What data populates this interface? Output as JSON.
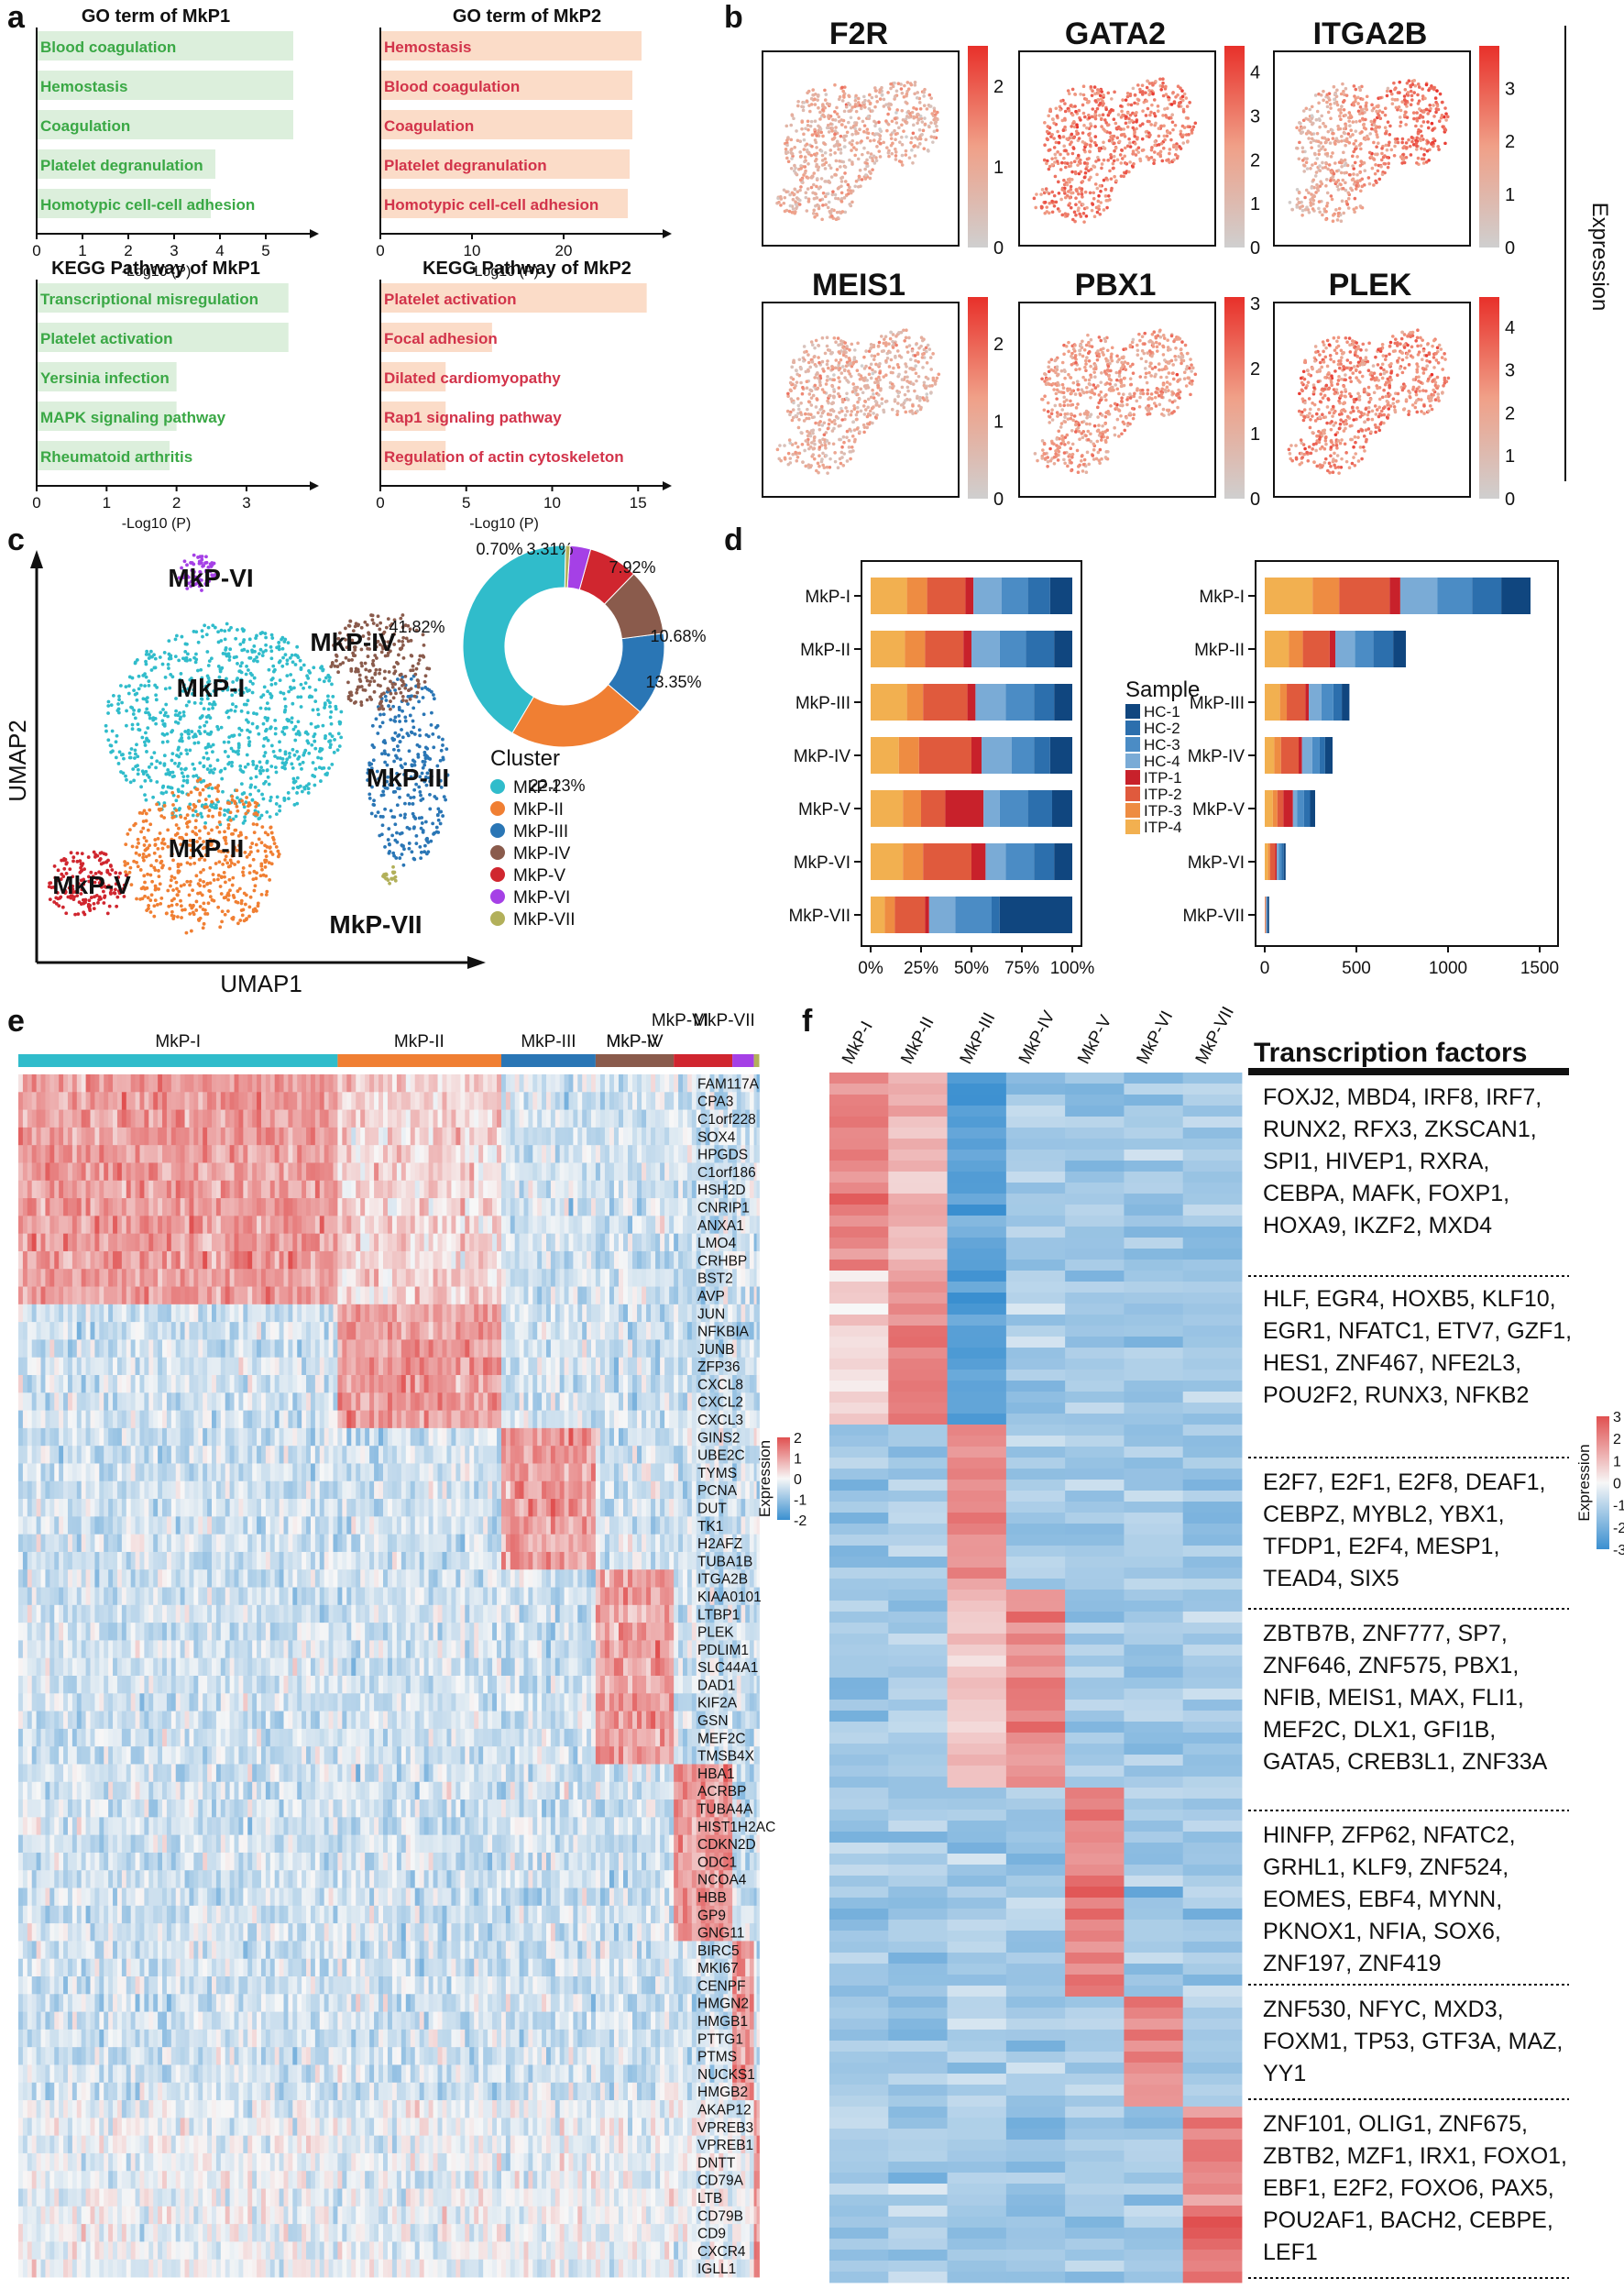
{
  "panel_labels": {
    "a": "a",
    "b": "b",
    "c": "c",
    "d": "d",
    "e": "e",
    "f": "f"
  },
  "colors": {
    "mkp1_bar": "#dcefdc",
    "mkp1_text": "#3aa845",
    "mkp2_bar": "#fbdcc8",
    "mkp2_text": "#d2334a",
    "clusters": {
      "MkP-I": "#30bccb",
      "MkP-II": "#f07f33",
      "MkP-III": "#2a76b5",
      "MkP-IV": "#8a5b4c",
      "MkP-V": "#d0262f",
      "MkP-VI": "#a540e6",
      "MkP-VII": "#b2b05a"
    },
    "samples": {
      "HC-1": "#10467f",
      "HC-2": "#2c6fad",
      "HC-3": "#4b8cc5",
      "HC-4": "#7aabd6",
      "ITP-1": "#c8212b",
      "ITP-2": "#e05a3d",
      "ITP-3": "#ee8c42",
      "ITP-4": "#f2b050"
    }
  },
  "chart_data": [
    {
      "id": "a1",
      "type": "bar",
      "orientation": "horizontal",
      "title": "GO term of MkP1",
      "categories": [
        "Blood coagulation",
        "Hemostasis",
        "Coagulation",
        "Platelet degranulation",
        "Homotypic cell-cell adhesion"
      ],
      "values": [
        5.6,
        5.6,
        5.6,
        3.9,
        3.8
      ],
      "xlabel": "-Log10 (P)",
      "xticks": [
        "0",
        "1",
        "2",
        "3",
        "4",
        "5"
      ],
      "xlim": [
        0,
        5.8
      ]
    },
    {
      "id": "a2",
      "type": "bar",
      "orientation": "horizontal",
      "title": "GO term of MkP2",
      "categories": [
        "Hemostasis",
        "Blood coagulation",
        "Coagulation",
        "Platelet degranulation",
        "Homotypic cell-cell adhesion"
      ],
      "values": [
        28.5,
        27.5,
        27.5,
        27.2,
        27.0
      ],
      "xlabel": "-Log10 (P)",
      "xticks": [
        "0",
        "10",
        "20"
      ],
      "xlim": [
        0,
        30
      ]
    },
    {
      "id": "a3",
      "type": "bar",
      "orientation": "horizontal",
      "title": "KEGG Pathway of MkP1",
      "categories": [
        "Transcriptional misregulation",
        "Platelet activation",
        "Yersinia infection",
        "MAPK signaling pathway",
        "Rheumatoid arthritis"
      ],
      "values": [
        3.6,
        3.6,
        2.0,
        2.0,
        1.9
      ],
      "xlabel": "-Log10 (P)",
      "xticks": [
        "0",
        "1",
        "2",
        "3"
      ],
      "xlim": [
        0,
        3.8
      ]
    },
    {
      "id": "a4",
      "type": "bar",
      "orientation": "horizontal",
      "title": "KEGG Pathway of MkP2",
      "categories": [
        "Platelet activation",
        "Focal adhesion",
        "Dilated cardiomyopathy",
        "Rap1 signaling pathway",
        "Regulation of actin cytoskeleton"
      ],
      "values": [
        15.5,
        6.5,
        3.8,
        3.8,
        3.8
      ],
      "xlabel": "-Log10 (P)",
      "xticks": [
        "0",
        "5",
        "10",
        "15"
      ],
      "xlim": [
        0,
        16
      ]
    },
    {
      "id": "b",
      "type": "scatter",
      "subtype": "feature-umap",
      "panels": [
        {
          "gene": "F2R",
          "cbar_ticks": [
            "0",
            "1",
            "2"
          ],
          "max": 2.5
        },
        {
          "gene": "GATA2",
          "cbar_ticks": [
            "0",
            "1",
            "2",
            "3",
            "4"
          ],
          "max": 4.6
        },
        {
          "gene": "ITGA2B",
          "cbar_ticks": [
            "0",
            "1",
            "2",
            "3"
          ],
          "max": 3.8
        },
        {
          "gene": "MEIS1",
          "cbar_ticks": [
            "0",
            "1",
            "2"
          ],
          "max": 2.6
        },
        {
          "gene": "PBX1",
          "cbar_ticks": [
            "0",
            "1",
            "2",
            "3"
          ],
          "max": 3.1
        },
        {
          "gene": "PLEK",
          "cbar_ticks": [
            "0",
            "1",
            "2",
            "3",
            "4"
          ],
          "max": 4.7
        }
      ],
      "colorbar_label": "Expression"
    },
    {
      "id": "c1",
      "type": "scatter",
      "subtype": "umap",
      "xlabel": "UMAP1",
      "ylabel": "UMAP2",
      "clusters": [
        "MkP-I",
        "MkP-II",
        "MkP-III",
        "MkP-IV",
        "MkP-V",
        "MkP-VI",
        "MkP-VII"
      ],
      "legend_title": "Cluster"
    },
    {
      "id": "c2",
      "type": "pie",
      "subtype": "donut",
      "categories": [
        "MkP-I",
        "MkP-II",
        "MkP-III",
        "MkP-IV",
        "MkP-V",
        "MkP-VI",
        "MkP-VII"
      ],
      "values": [
        41.82,
        22.23,
        13.35,
        10.68,
        7.92,
        3.31,
        0.7
      ],
      "labels": [
        "41.82%",
        "22.23%",
        "13.35%",
        "10.68%",
        "7.92%",
        "3.31%",
        "0.70%"
      ]
    },
    {
      "id": "d1",
      "type": "bar",
      "orientation": "horizontal",
      "stacked": true,
      "normalized": true,
      "categories": [
        "MkP-I",
        "MkP-II",
        "MkP-III",
        "MkP-IV",
        "MkP-V",
        "MkP-VI",
        "MkP-VII"
      ],
      "series_order": [
        "ITP-4",
        "ITP-3",
        "ITP-2",
        "ITP-1",
        "HC-4",
        "HC-3",
        "HC-2",
        "HC-1"
      ],
      "values": [
        [
          0.18,
          0.1,
          0.19,
          0.04,
          0.14,
          0.13,
          0.11,
          0.11
        ],
        [
          0.17,
          0.1,
          0.19,
          0.04,
          0.14,
          0.13,
          0.14,
          0.09
        ],
        [
          0.18,
          0.08,
          0.22,
          0.04,
          0.15,
          0.14,
          0.1,
          0.09
        ],
        [
          0.14,
          0.1,
          0.26,
          0.05,
          0.15,
          0.11,
          0.08,
          0.11
        ],
        [
          0.16,
          0.09,
          0.12,
          0.19,
          0.08,
          0.14,
          0.12,
          0.1
        ],
        [
          0.16,
          0.1,
          0.24,
          0.07,
          0.1,
          0.14,
          0.1,
          0.09
        ],
        [
          0.07,
          0.05,
          0.15,
          0.02,
          0.13,
          0.18,
          0.04,
          0.36
        ]
      ],
      "xticks": [
        "0%",
        "25%",
        "50%",
        "75%",
        "100%"
      ],
      "legend_title": "Sample",
      "legend": [
        "HC-1",
        "HC-2",
        "HC-3",
        "HC-4",
        "ITP-1",
        "ITP-2",
        "ITP-3",
        "ITP-4"
      ]
    },
    {
      "id": "d2",
      "type": "bar",
      "orientation": "horizontal",
      "stacked": true,
      "categories": [
        "MkP-I",
        "MkP-II",
        "MkP-III",
        "MkP-IV",
        "MkP-V",
        "MkP-VI",
        "MkP-VII"
      ],
      "totals": [
        1450,
        770,
        462,
        370,
        275,
        114,
        24
      ],
      "xticks": [
        "0",
        "500",
        "1000",
        "1500"
      ],
      "xlim": [
        0,
        1550
      ]
    },
    {
      "id": "e",
      "type": "heatmap",
      "clusters": [
        "MkP-I",
        "MkP-II",
        "MkP-III",
        "MkP-IV",
        "MkP-V",
        "MkP-VI",
        "MkP-VII"
      ],
      "cluster_widths": [
        0.474,
        0.243,
        0.14,
        0.116,
        0.087,
        0.032,
        0.008
      ],
      "genes": [
        "FAM117A",
        "CPA3",
        "C1orf228",
        "SOX4",
        "HPGDS",
        "C1orf186",
        "HSH2D",
        "CNRIP1",
        "ANXA1",
        "LMO4",
        "CRHBP",
        "BST2",
        "AVP",
        "JUN",
        "NFKBIA",
        "JUNB",
        "ZFP36",
        "CXCL8",
        "CXCL2",
        "CXCL3",
        "GINS2",
        "UBE2C",
        "TYMS",
        "PCNA",
        "DUT",
        "TK1",
        "H2AFZ",
        "TUBA1B",
        "ITGA2B",
        "KIAA0101",
        "LTBP1",
        "PLEK",
        "PDLIM1",
        "SLC44A1",
        "DAD1",
        "KIF2A",
        "GSN",
        "MEF2C",
        "TMSB4X",
        "HBA1",
        "ACRBP",
        "TUBA4A",
        "HIST1H2AC",
        "CDKN2D",
        "ODC1",
        "NCOA4",
        "HBB",
        "GP9",
        "GNG11",
        "BIRC5",
        "MKI67",
        "CENPF",
        "HMGN2",
        "HMGB1",
        "PTTG1",
        "PTMS",
        "NUCKS1",
        "HMGB2",
        "AKAP12",
        "VPREB3",
        "VPREB1",
        "DNTT",
        "CD79A",
        "LTB",
        "CD79B",
        "CD9",
        "CXCR4",
        "IGLL1"
      ],
      "colorbar_label": "Expression",
      "cbar_ticks": [
        "2",
        "1",
        "0",
        "-1",
        "-2"
      ]
    },
    {
      "id": "f",
      "type": "heatmap",
      "columns": [
        "MkP-I",
        "MkP-II",
        "MkP-III",
        "MkP-IV",
        "MkP-V",
        "MkP-VI",
        "MkP-VII"
      ],
      "colorbar_label": "Expression",
      "cbar_ticks": [
        "3",
        "2",
        "1",
        "0",
        "-1",
        "-2",
        "-3"
      ],
      "tf_header": "Transcription factors",
      "tf_groups": [
        "FOXJ2, MBD4, IRF8, IRF7, RUNX2, RFX3, ZKSCAN1, SPI1, HIVEP1, RXRA, CEBPA, MAFK, FOXP1, HOXA9, IKZF2, MXD4",
        "HLF, EGR4, HOXB5, KLF10, EGR1, NFATC1, ETV7, GZF1, HES1, ZNF467, NFE2L3, POU2F2, RUNX3, NFKB2",
        "E2F7, E2F1, E2F8, DEAF1, CEBPZ, MYBL2, YBX1, TFDP1, E2F4, MESP1, TEAD4, SIX5",
        "ZBTB7B, ZNF777, SP7, ZNF646, ZNF575, PBX1, NFIB, MEIS1, MAX, FLI1, MEF2C, DLX1, GFI1B, GATA5, CREB3L1, ZNF33A",
        "HINFP, ZFP62, NFATC2, GRHL1, KLF9, ZNF524, EOMES, EBF4, MYNN, PKNOX1, NFIA, SOX6, ZNF197, ZNF419",
        "ZNF530, NFYC, MXD3, FOXM1, TP53, GTF3A, MAZ, YY1",
        "ZNF101, OLIG1, ZNF675, ZBTB2, MZF1, IRX1, FOXO1, EBF1, E2F2, FOXO6, PAX5, POU2AF1, BACH2, CEBPE, LEF1"
      ]
    }
  ]
}
